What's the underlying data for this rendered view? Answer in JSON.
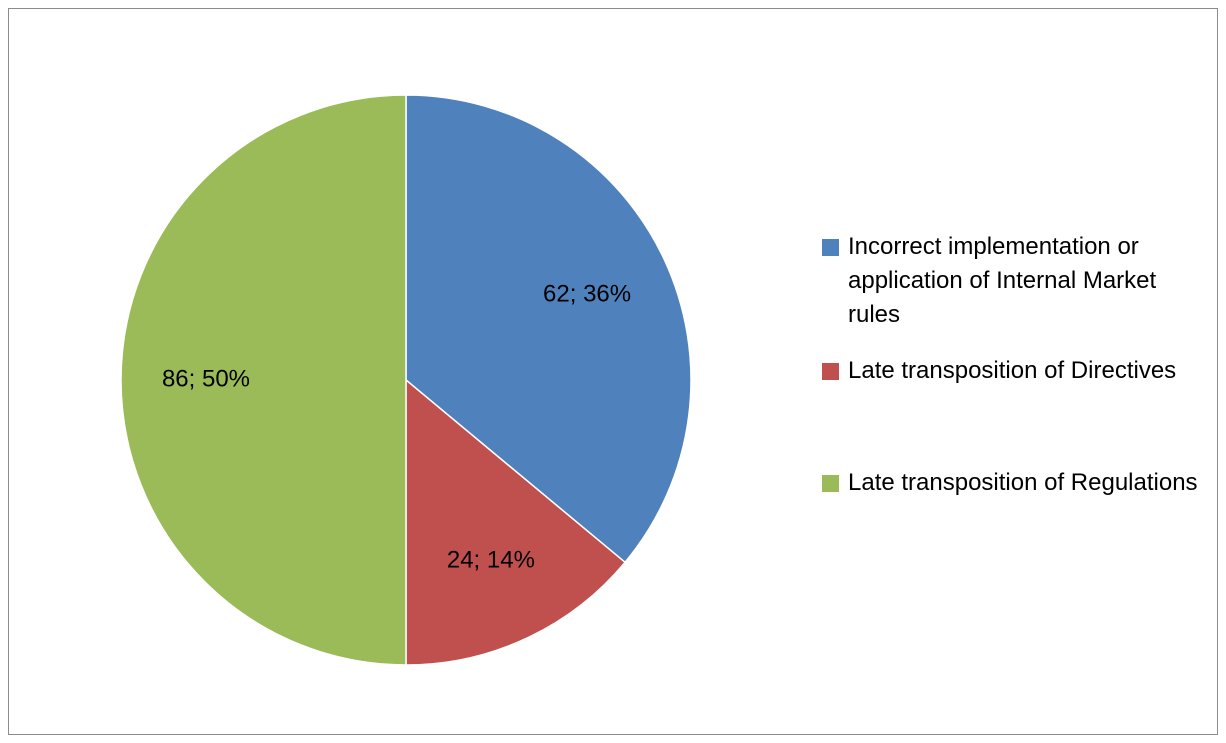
{
  "chart_data": {
    "type": "pie",
    "categories": [
      "Incorrect implementation or application of Internal Market rules",
      "Late transposition of Directives",
      "Late transposition of Regulations"
    ],
    "values": [
      62,
      24,
      86
    ],
    "value_labels": [
      "62; 36%",
      "24; 14%",
      "86; 50%"
    ],
    "colors": [
      "#4f81bd",
      "#c0504d",
      "#9bbb59"
    ],
    "legend": "right"
  }
}
